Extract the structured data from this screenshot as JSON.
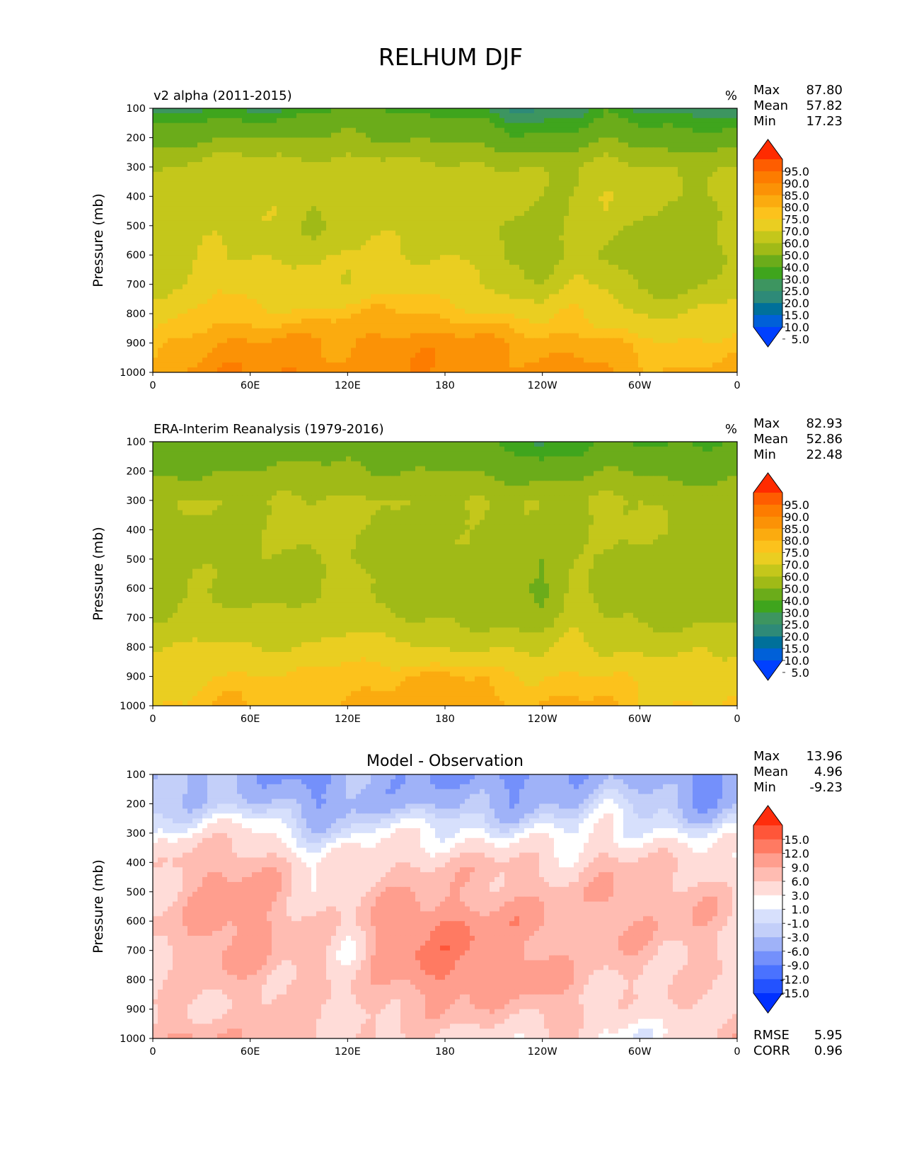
{
  "page_title": "RELHUM DJF",
  "abs_colors": [
    "#0040ff",
    "#0060d8",
    "#00709a",
    "#2e8a78",
    "#3d9560",
    "#3fa51d",
    "#6bac1a",
    "#a0ba17",
    "#c4c71b",
    "#eace21",
    "#fcc21c",
    "#fbab0f",
    "#fb9206",
    "#fd7c00",
    "#fe5d00",
    "#ff2b00"
  ],
  "diff_colors": [
    "#0030ff",
    "#2352ff",
    "#4a72ff",
    "#7490fb",
    "#9fb2f8",
    "#c3cff9",
    "#d7e0fc",
    "#ffffff",
    "#ffdcd8",
    "#ffbcb2",
    "#ff9e8e",
    "#ff7a62",
    "#ff5639",
    "#ff2d0c"
  ],
  "chart_data": [
    {
      "type": "contour",
      "name": "model",
      "title": "v2 alpha (2011-2015)",
      "units": "%",
      "xlabel": "",
      "ylabel": "Pressure (mb)",
      "x_ticks": [
        "0",
        "60E",
        "120E",
        "180",
        "120W",
        "60W",
        "0"
      ],
      "y_ticks": [
        "100",
        "200",
        "300",
        "400",
        "500",
        "600",
        "700",
        "800",
        "900",
        "1000"
      ],
      "ylim": [
        1000,
        100
      ],
      "stats": [
        {
          "label": "Max",
          "value": "87.80"
        },
        {
          "label": "Mean",
          "value": "57.82"
        },
        {
          "label": "Min",
          "value": "17.23"
        }
      ],
      "colorbar": {
        "levels": [
          "95.0",
          "90.0",
          "85.0",
          "80.0",
          "75.0",
          "70.0",
          "60.0",
          "50.0",
          "40.0",
          "30.0",
          "25.0",
          "20.0",
          "15.0",
          "10.0",
          "5.0"
        ],
        "extend": "both"
      },
      "zonal_profile": [
        {
          "lat": 0,
          "values": [
            20,
            35,
            48,
            52,
            52,
            54,
            56,
            66,
            74,
            78
          ]
        },
        {
          "lat": 20,
          "values": [
            22,
            36,
            52,
            56,
            55,
            56,
            60,
            68,
            76,
            80
          ]
        },
        {
          "lat": 40,
          "values": [
            26,
            40,
            56,
            58,
            58,
            62,
            70,
            74,
            82,
            84
          ]
        },
        {
          "lat": 60,
          "values": [
            24,
            40,
            56,
            58,
            58,
            60,
            64,
            72,
            80,
            84
          ]
        },
        {
          "lat": 80,
          "values": [
            25,
            38,
            56,
            58,
            58,
            60,
            62,
            72,
            82,
            86
          ]
        },
        {
          "lat": 100,
          "values": [
            28,
            40,
            54,
            52,
            46,
            56,
            62,
            72,
            80,
            84
          ]
        },
        {
          "lat": 120,
          "values": [
            32,
            42,
            56,
            58,
            58,
            60,
            62,
            74,
            80,
            82
          ]
        },
        {
          "lat": 140,
          "values": [
            30,
            40,
            54,
            58,
            58,
            62,
            66,
            76,
            82,
            84
          ]
        },
        {
          "lat": 160,
          "values": [
            28,
            38,
            52,
            56,
            56,
            60,
            66,
            76,
            84,
            84
          ]
        },
        {
          "lat": 180,
          "values": [
            28,
            38,
            52,
            56,
            56,
            60,
            64,
            74,
            82,
            84
          ]
        },
        {
          "lat": 200,
          "values": [
            26,
            36,
            52,
            55,
            56,
            58,
            62,
            72,
            82,
            84
          ]
        },
        {
          "lat": 220,
          "values": [
            18,
            32,
            50,
            54,
            50,
            46,
            54,
            68,
            80,
            82
          ]
        },
        {
          "lat": 240,
          "values": [
            18,
            32,
            48,
            50,
            46,
            44,
            52,
            66,
            78,
            82
          ]
        },
        {
          "lat": 260,
          "values": [
            22,
            34,
            48,
            52,
            52,
            54,
            62,
            72,
            78,
            82
          ]
        },
        {
          "lat": 280,
          "values": [
            30,
            38,
            56,
            62,
            56,
            50,
            58,
            66,
            76,
            80
          ]
        },
        {
          "lat": 300,
          "values": [
            24,
            34,
            52,
            54,
            48,
            42,
            48,
            60,
            72,
            78
          ]
        },
        {
          "lat": 320,
          "values": [
            22,
            32,
            50,
            50,
            46,
            40,
            44,
            58,
            70,
            76
          ]
        },
        {
          "lat": 340,
          "values": [
            20,
            34,
            48,
            50,
            46,
            44,
            50,
            62,
            72,
            76
          ]
        },
        {
          "lat": 360,
          "values": [
            20,
            35,
            48,
            52,
            52,
            54,
            56,
            66,
            74,
            78
          ]
        }
      ]
    },
    {
      "type": "contour",
      "name": "observation",
      "title": "ERA-Interim Reanalysis (1979-2016)",
      "units": "%",
      "xlabel": "",
      "ylabel": "Pressure (mb)",
      "x_ticks": [
        "0",
        "60E",
        "120E",
        "180",
        "120W",
        "60W",
        "0"
      ],
      "y_ticks": [
        "100",
        "200",
        "300",
        "400",
        "500",
        "600",
        "700",
        "800",
        "900",
        "1000"
      ],
      "ylim": [
        1000,
        100
      ],
      "stats": [
        {
          "label": "Max",
          "value": "82.93"
        },
        {
          "label": "Mean",
          "value": "52.86"
        },
        {
          "label": "Min",
          "value": "22.48"
        }
      ],
      "colorbar": {
        "levels": [
          "95.0",
          "90.0",
          "85.0",
          "80.0",
          "75.0",
          "70.0",
          "60.0",
          "50.0",
          "40.0",
          "30.0",
          "25.0",
          "20.0",
          "15.0",
          "10.0",
          "5.0"
        ],
        "extend": "both"
      },
      "zonal_profile": [
        {
          "lat": 0,
          "values": [
            30,
            38,
            46,
            48,
            48,
            48,
            50,
            58,
            66,
            70
          ]
        },
        {
          "lat": 20,
          "values": [
            32,
            38,
            52,
            48,
            48,
            48,
            52,
            60,
            68,
            70
          ]
        },
        {
          "lat": 40,
          "values": [
            32,
            40,
            48,
            48,
            48,
            50,
            54,
            62,
            72,
            76
          ]
        },
        {
          "lat": 60,
          "values": [
            32,
            40,
            48,
            48,
            48,
            48,
            50,
            60,
            70,
            74
          ]
        },
        {
          "lat": 80,
          "values": [
            32,
            42,
            52,
            52,
            48,
            48,
            52,
            60,
            70,
            74
          ]
        },
        {
          "lat": 100,
          "values": [
            34,
            42,
            52,
            52,
            50,
            46,
            50,
            62,
            72,
            76
          ]
        },
        {
          "lat": 120,
          "values": [
            34,
            42,
            52,
            52,
            52,
            54,
            56,
            66,
            74,
            76
          ]
        },
        {
          "lat": 140,
          "values": [
            32,
            40,
            50,
            50,
            48,
            48,
            52,
            64,
            74,
            76
          ]
        },
        {
          "lat": 160,
          "values": [
            32,
            40,
            48,
            48,
            48,
            46,
            48,
            62,
            76,
            78
          ]
        },
        {
          "lat": 180,
          "values": [
            32,
            40,
            48,
            48,
            48,
            46,
            48,
            60,
            76,
            78
          ]
        },
        {
          "lat": 200,
          "values": [
            32,
            38,
            52,
            48,
            48,
            46,
            46,
            58,
            74,
            78
          ]
        },
        {
          "lat": 220,
          "values": [
            26,
            36,
            50,
            48,
            42,
            40,
            46,
            58,
            72,
            76
          ]
        },
        {
          "lat": 240,
          "values": [
            22,
            34,
            48,
            46,
            40,
            38,
            44,
            56,
            70,
            74
          ]
        },
        {
          "lat": 260,
          "values": [
            28,
            36,
            48,
            48,
            48,
            54,
            56,
            64,
            72,
            76
          ]
        },
        {
          "lat": 280,
          "values": [
            32,
            40,
            52,
            52,
            48,
            46,
            50,
            58,
            70,
            76
          ]
        },
        {
          "lat": 300,
          "values": [
            30,
            38,
            52,
            52,
            46,
            44,
            48,
            58,
            68,
            72
          ]
        },
        {
          "lat": 320,
          "values": [
            28,
            36,
            48,
            48,
            44,
            42,
            46,
            56,
            66,
            70
          ]
        },
        {
          "lat": 340,
          "values": [
            28,
            36,
            46,
            48,
            40,
            42,
            48,
            58,
            66,
            70
          ]
        },
        {
          "lat": 360,
          "values": [
            30,
            38,
            46,
            48,
            48,
            48,
            50,
            58,
            66,
            70
          ]
        }
      ]
    },
    {
      "type": "contour",
      "name": "difference",
      "title": "Model - Observation",
      "units": "",
      "xlabel": "",
      "ylabel": "Pressure (mb)",
      "x_ticks": [
        "0",
        "60E",
        "120E",
        "180",
        "120W",
        "60W",
        "0"
      ],
      "y_ticks": [
        "100",
        "200",
        "300",
        "400",
        "500",
        "600",
        "700",
        "800",
        "900",
        "1000"
      ],
      "ylim": [
        1000,
        100
      ],
      "stats": [
        {
          "label": "Max",
          "value": "13.96"
        },
        {
          "label": "Mean",
          "value": "4.96"
        },
        {
          "label": "Min",
          "value": "-9.23"
        }
      ],
      "extra_stats": [
        {
          "label": "RMSE",
          "value": "5.95"
        },
        {
          "label": "CORR",
          "value": "0.96"
        }
      ],
      "colorbar": {
        "levels": [
          "15.0",
          "12.0",
          "9.0",
          "6.0",
          "3.0",
          "1.0",
          "-1.0",
          "-3.0",
          "-6.0",
          "-9.0",
          "-12.0",
          "-15.0"
        ],
        "extend": "both"
      },
      "zonal_profile": [
        {
          "lat": 0,
          "values": [
            -4,
            -3,
            1,
            4,
            5,
            6,
            6,
            5,
            6,
            8
          ]
        },
        {
          "lat": 20,
          "values": [
            -4,
            -2,
            2,
            8,
            8,
            8,
            8,
            6,
            6,
            10
          ]
        },
        {
          "lat": 40,
          "values": [
            -3,
            -1,
            4,
            9,
            10,
            11,
            10,
            8,
            6,
            8
          ]
        },
        {
          "lat": 60,
          "values": [
            -4,
            -2,
            4,
            9,
            10,
            11,
            10,
            8,
            6,
            7
          ]
        },
        {
          "lat": 80,
          "values": [
            -6,
            -4,
            2,
            6,
            8,
            8,
            7,
            7,
            7,
            9
          ]
        },
        {
          "lat": 100,
          "values": [
            -8,
            -6,
            -1,
            2,
            4,
            6,
            8,
            7,
            6,
            8
          ]
        },
        {
          "lat": 120,
          "values": [
            -4,
            -4,
            -1,
            4,
            5,
            5,
            3,
            5,
            5,
            5
          ]
        },
        {
          "lat": 140,
          "values": [
            -5,
            -3,
            2,
            6,
            8,
            10,
            10,
            8,
            7,
            5
          ]
        },
        {
          "lat": 160,
          "values": [
            -6,
            -4,
            2,
            6,
            8,
            12,
            12,
            11,
            8,
            5
          ]
        },
        {
          "lat": 180,
          "values": [
            -6,
            -4,
            2,
            6,
            8,
            12,
            13,
            12,
            8,
            5
          ]
        },
        {
          "lat": 200,
          "values": [
            -6,
            -4,
            2,
            7,
            8,
            11,
            12,
            11,
            8,
            5
          ]
        },
        {
          "lat": 220,
          "values": [
            -8,
            -5,
            1,
            6,
            8,
            10,
            10,
            10,
            8,
            4
          ]
        },
        {
          "lat": 240,
          "values": [
            -6,
            -3,
            1,
            6,
            8,
            10,
            10,
            11,
            8,
            3
          ]
        },
        {
          "lat": 260,
          "values": [
            -6,
            -2,
            1,
            4,
            6,
            6,
            6,
            8,
            8,
            6
          ]
        },
        {
          "lat": 280,
          "values": [
            -3,
            0,
            3,
            8,
            10,
            10,
            8,
            6,
            4,
            1
          ]
        },
        {
          "lat": 300,
          "values": [
            -4,
            -2,
            2,
            6,
            8,
            8,
            8,
            6,
            4,
            2
          ]
        },
        {
          "lat": 320,
          "values": [
            -6,
            -3,
            2,
            6,
            8,
            8,
            6,
            6,
            5,
            4
          ]
        },
        {
          "lat": 340,
          "values": [
            -9,
            -6,
            0,
            4,
            8,
            8,
            7,
            6,
            6,
            5
          ]
        },
        {
          "lat": 360,
          "values": [
            -4,
            -3,
            1,
            4,
            5,
            6,
            6,
            5,
            6,
            8
          ]
        }
      ]
    }
  ]
}
